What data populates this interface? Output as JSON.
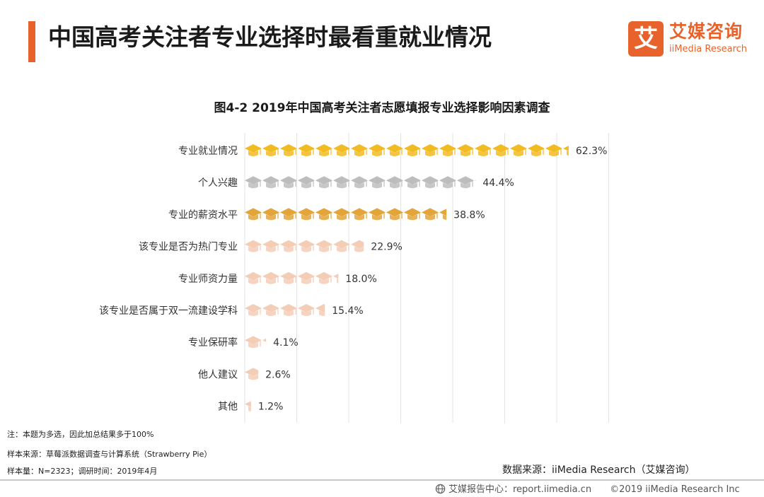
{
  "header": {
    "title": "中国高考关注者专业选择时最看重就业情况",
    "accent_color": "#e8632b"
  },
  "logo": {
    "mark": "艾",
    "name_cn": "艾媒咨询",
    "name_en": "iiMedia Research",
    "color": "#e8632b"
  },
  "chart_data": {
    "type": "bar",
    "orientation": "horizontal",
    "title": "图4-2 2019年中国高考关注者志愿填报专业选择影响因素调查",
    "categories": [
      "专业就业情况",
      "个人兴趣",
      "专业的薪资水平",
      "该专业是否为热门专业",
      "专业师资力量",
      "该专业是否属于双一流建设学科",
      "专业保研率",
      "他人建议",
      "其他"
    ],
    "values": [
      62.3,
      44.4,
      38.8,
      22.9,
      18.0,
      15.4,
      4.1,
      2.6,
      1.2
    ],
    "value_labels": [
      "62.3%",
      "44.4%",
      "38.8%",
      "22.9%",
      "18.0%",
      "15.4%",
      "4.1%",
      "2.6%",
      "1.2%"
    ],
    "xlim": [
      0,
      70
    ],
    "grid": true,
    "colors": [
      "#f2bb22",
      "#bdbdbd",
      "#e3a43a",
      "#f4cdb6",
      "#f4cdb6",
      "#f4cdb6",
      "#f4cdb6",
      "#f4cdb6",
      "#f4cdb6"
    ],
    "glyph": "graduation-cap-icon"
  },
  "notes": {
    "multi_select": "注：本题为多选，因此加总结果多于100%",
    "sample_source": "样本来源：草莓派数据调查与计算系统（Strawberry Pie）",
    "sample_size": "样本量：N=2323；调研时间：2019年4月"
  },
  "source": "数据来源：iiMedia Research（艾媒咨询）",
  "footer": {
    "site": "艾媒报告中心：report.iimedia.cn",
    "copyright": "©2019  iiMedia Research  Inc"
  }
}
